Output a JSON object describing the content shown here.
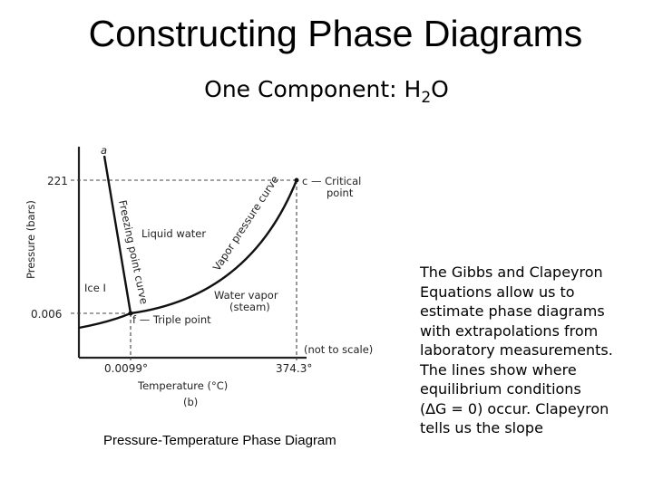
{
  "slide": {
    "title": "Constructing Phase Diagrams",
    "subtitle_prefix": "One Component: H",
    "subtitle_sub": "2",
    "subtitle_suffix": "O",
    "caption": "Pressure-Temperature Phase Diagram",
    "side_text_lines": [
      "The Gibbs and Clapeyron",
      "Equations allow us to",
      "estimate phase diagrams",
      "with extrapolations from",
      "laboratory measurements.",
      "The lines show where",
      "equilibrium conditions",
      " (∆G = 0) occur. Clapeyron",
      "tells us the slope"
    ]
  },
  "diagram": {
    "y_axis_label": "Pressure (bars)",
    "x_axis_label": "Temperature (°C)",
    "panel_label": "(b)",
    "y_ticks": [
      "221",
      "0.006"
    ],
    "x_ticks": [
      "0.0099°",
      "374.3°"
    ],
    "point_a": "a",
    "critical_point_line1": "c — Critical",
    "critical_point_line2": "point",
    "triple_point": "f — Triple point",
    "region_liquid": "Liquid water",
    "region_ice": "Ice I",
    "region_vapor_line1": "Water vapor",
    "region_vapor_line2": "(steam)",
    "freezing_curve_label": "Freezing point curve",
    "vapor_curve_label": "Vapor pressure curve",
    "scale_note": "(not to scale)"
  }
}
